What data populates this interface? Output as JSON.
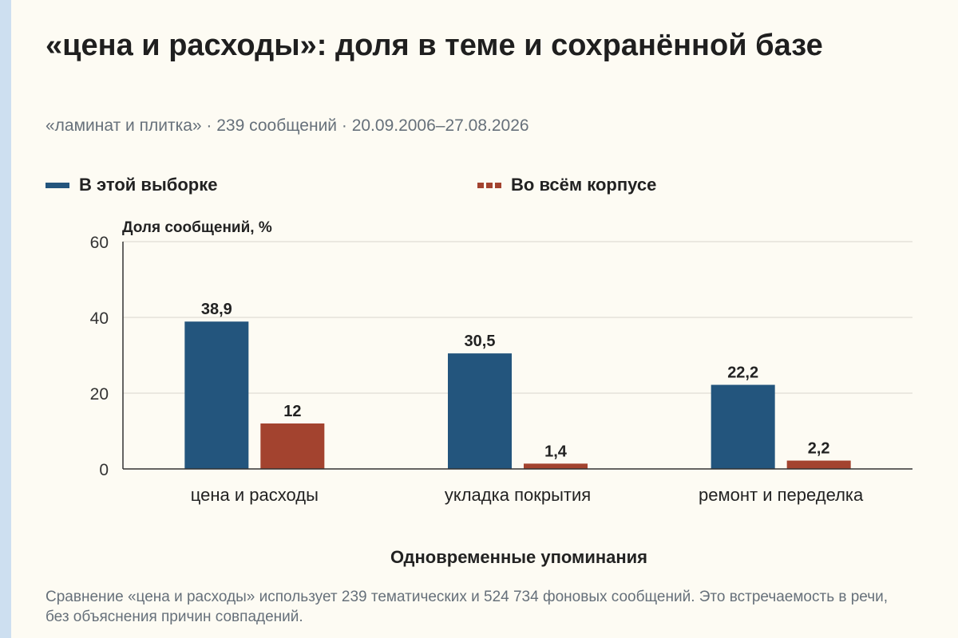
{
  "title": "«цена и расходы»: доля в теме и сохранённой базе",
  "subtitle": "«ламинат и плитка» · 239 сообщений · 20.09.2006–27.08.2026",
  "legend": {
    "sample": "В этой выборке",
    "corpus": "Во всём корпусе"
  },
  "footnote": "Сравнение «цена и расходы» использует 239 тематических и 524 734 фоновых сообщений. Это встречаемость в речи, без объяснения причин совпадений.",
  "colors": {
    "sample": "#23557d",
    "corpus": "#a3432f",
    "grid": "#d9d6cc",
    "axis": "#333333"
  },
  "chart_data": {
    "type": "bar",
    "title": "«цена и расходы»: доля в теме и сохранённой базе",
    "xlabel": "Одновременные упоминания",
    "ylabel": "Доля сообщений, %",
    "ylim": [
      0,
      60
    ],
    "yticks": [
      0,
      20,
      40,
      60
    ],
    "grid": true,
    "legend_position": "top",
    "categories": [
      "цена и расходы",
      "укладка покрытия",
      "ремонт и переделка"
    ],
    "series": [
      {
        "name": "В этой выборке",
        "values": [
          38.9,
          30.5,
          22.2
        ],
        "labels": [
          "38,9",
          "30,5",
          "22,2"
        ]
      },
      {
        "name": "Во всём корпусе",
        "values": [
          12,
          1.4,
          2.2
        ],
        "labels": [
          "12",
          "1,4",
          "2,2"
        ]
      }
    ]
  }
}
